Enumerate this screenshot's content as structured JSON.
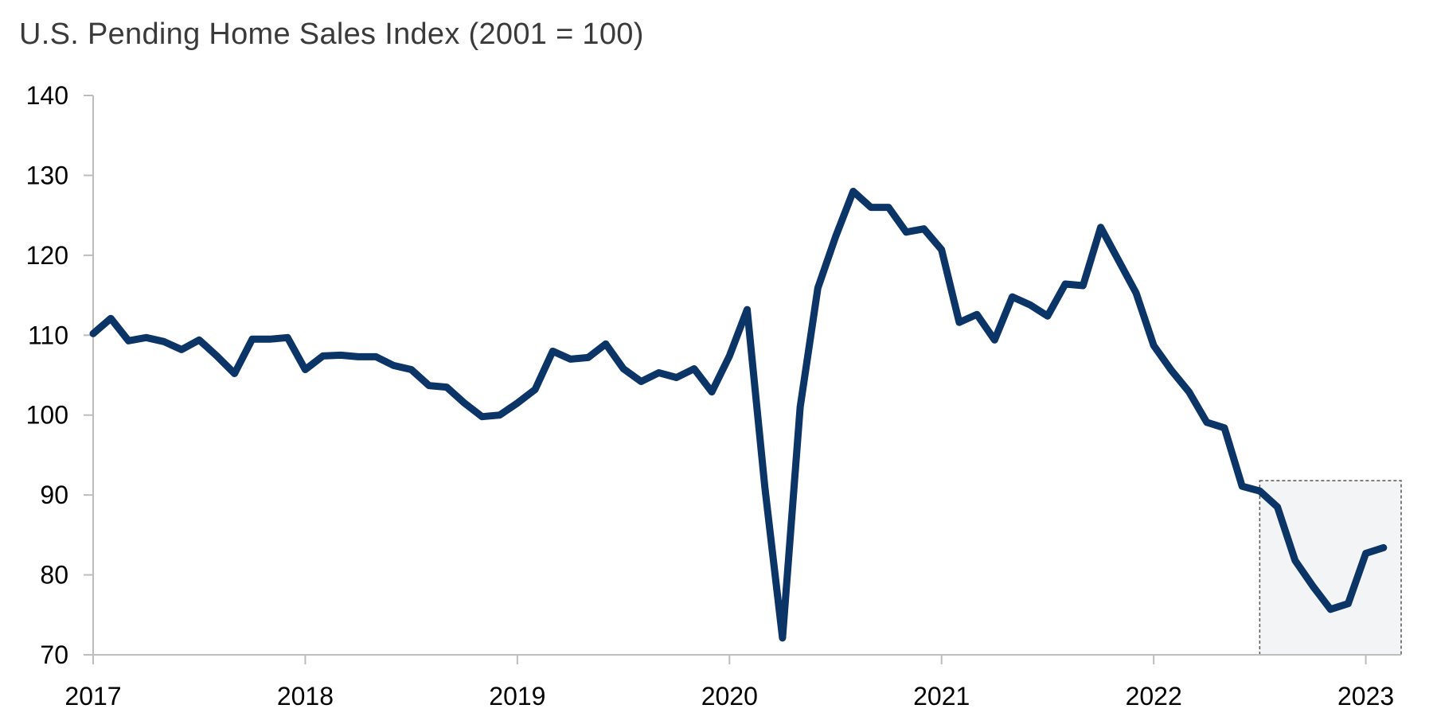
{
  "chart_data": {
    "type": "line",
    "title": "U.S. Pending Home Sales Index (2001 = 100)",
    "xlabel": "",
    "ylabel": "",
    "ylim": [
      70,
      140
    ],
    "yticks": [
      70,
      80,
      90,
      100,
      110,
      120,
      130,
      140
    ],
    "xlim": [
      "2017-01",
      "2023-03"
    ],
    "xticks": [
      "2017",
      "2018",
      "2019",
      "2020",
      "2021",
      "2022",
      "2023"
    ],
    "grid": false,
    "legend": "none",
    "line_color": "#0b3467",
    "highlight_region": {
      "x_start": "2022-07",
      "x_end": "2023-03",
      "y_start": 70,
      "y_end": 91.8,
      "fill": "#f3f4f6",
      "border": "#555555"
    },
    "series": [
      {
        "x": [
          "2017-01",
          "2017-02",
          "2017-03",
          "2017-04",
          "2017-05",
          "2017-06",
          "2017-07",
          "2017-08",
          "2017-09",
          "2017-10",
          "2017-11",
          "2017-12",
          "2018-01",
          "2018-02",
          "2018-03",
          "2018-04",
          "2018-05",
          "2018-06",
          "2018-07",
          "2018-08",
          "2018-09",
          "2018-10",
          "2018-11",
          "2018-12",
          "2019-01",
          "2019-02",
          "2019-03",
          "2019-04",
          "2019-05",
          "2019-06",
          "2019-07",
          "2019-08",
          "2019-09",
          "2019-10",
          "2019-11",
          "2019-12",
          "2020-01",
          "2020-02",
          "2020-03",
          "2020-04",
          "2020-05",
          "2020-06",
          "2020-07",
          "2020-08",
          "2020-09",
          "2020-10",
          "2020-11",
          "2020-12",
          "2021-01",
          "2021-02",
          "2021-03",
          "2021-04",
          "2021-05",
          "2021-06",
          "2021-07",
          "2021-08",
          "2021-09",
          "2021-10",
          "2021-11",
          "2021-12",
          "2022-01",
          "2022-02",
          "2022-03",
          "2022-04",
          "2022-05",
          "2022-06",
          "2022-07",
          "2022-08",
          "2022-09",
          "2022-10",
          "2022-11",
          "2022-12",
          "2023-01",
          "2023-02"
        ],
        "values": [
          110.2,
          112.1,
          109.3,
          109.7,
          109.2,
          108.2,
          109.4,
          107.4,
          105.2,
          109.5,
          109.5,
          109.7,
          105.7,
          107.4,
          107.5,
          107.3,
          107.3,
          106.2,
          105.7,
          103.7,
          103.5,
          101.5,
          99.8,
          100.0,
          101.5,
          103.2,
          108.0,
          107.0,
          107.2,
          108.9,
          105.8,
          104.2,
          105.3,
          104.7,
          105.8,
          102.9,
          107.4,
          113.2,
          91.0,
          72.1,
          101.0,
          115.9,
          122.3,
          128.0,
          126.0,
          126.0,
          122.9,
          123.3,
          120.7,
          111.6,
          112.6,
          109.4,
          114.8,
          113.8,
          112.4,
          116.4,
          116.2,
          123.5,
          119.4,
          115.3,
          108.7,
          105.6,
          102.9,
          99.1,
          98.4,
          91.1,
          90.5,
          88.5,
          81.8,
          78.6,
          75.7,
          76.4,
          82.7,
          83.4
        ]
      }
    ]
  }
}
